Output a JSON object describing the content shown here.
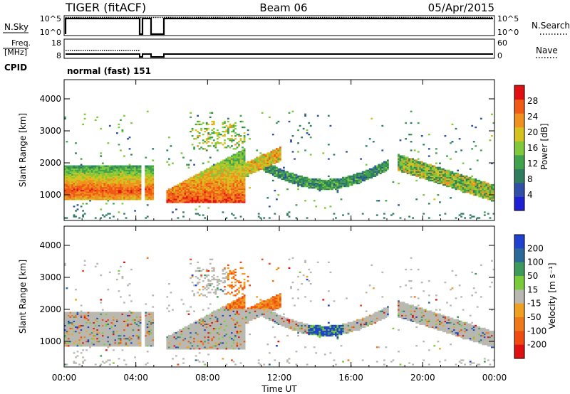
{
  "header": {
    "station": "TIGER (fitACF)",
    "beam": "Beam 06",
    "date": "05/Apr/2015"
  },
  "status_panels": {
    "nsky_label": "N.Sky",
    "nsky_ticks": [
      "10^5",
      "10^0"
    ],
    "nsearch_label": "N.Search",
    "freq_label_1": "Freq.",
    "freq_label_2": "[MHz]",
    "freq_ticks": [
      "18",
      "8"
    ],
    "nave_label": "Nave",
    "nave_ticks": [
      "60",
      "0"
    ],
    "cpid_label": "CPID",
    "cpid_value": "normal (fast) 151"
  },
  "colors": {
    "power_scale": [
      "#1f1fd6",
      "#2f4fa8",
      "#2e7d5e",
      "#3fa34d",
      "#7fc93a",
      "#d6c21e",
      "#f0901e",
      "#f05a14",
      "#e01010"
    ],
    "velocity_scale": [
      "#2040d0",
      "#2a6a9a",
      "#3c9a5a",
      "#7acb3a",
      "#b8b8b0",
      "#f0a020",
      "#f07818",
      "#f04a10",
      "#e01010"
    ]
  },
  "chart_data": [
    {
      "type": "heatmap",
      "name": "power",
      "ylabel": "Slant Range [km]",
      "yticks": [
        1000,
        2000,
        3000,
        4000
      ],
      "ylim": [
        200,
        4600
      ],
      "xlim": [
        0,
        24
      ],
      "colorbar_label": "Power [dB]",
      "colorbar_ticks": [
        4,
        8,
        12,
        16,
        20,
        24,
        28
      ],
      "colorbar_range": [
        0,
        32
      ]
    },
    {
      "type": "heatmap",
      "name": "velocity",
      "ylabel": "Slant Range [km]",
      "yticks": [
        1000,
        2000,
        3000,
        4000
      ],
      "ylim": [
        200,
        4600
      ],
      "xlim": [
        0,
        24
      ],
      "xticks": [
        "00:00",
        "04:00",
        "08:00",
        "12:00",
        "16:00",
        "20:00",
        "00:00"
      ],
      "xlabel": "Time UT",
      "colorbar_label": "Velocity [m s⁻¹]",
      "colorbar_ticks": [
        "200",
        "100",
        "50",
        "15",
        "-15",
        "-50",
        "-100",
        "-200"
      ]
    }
  ]
}
